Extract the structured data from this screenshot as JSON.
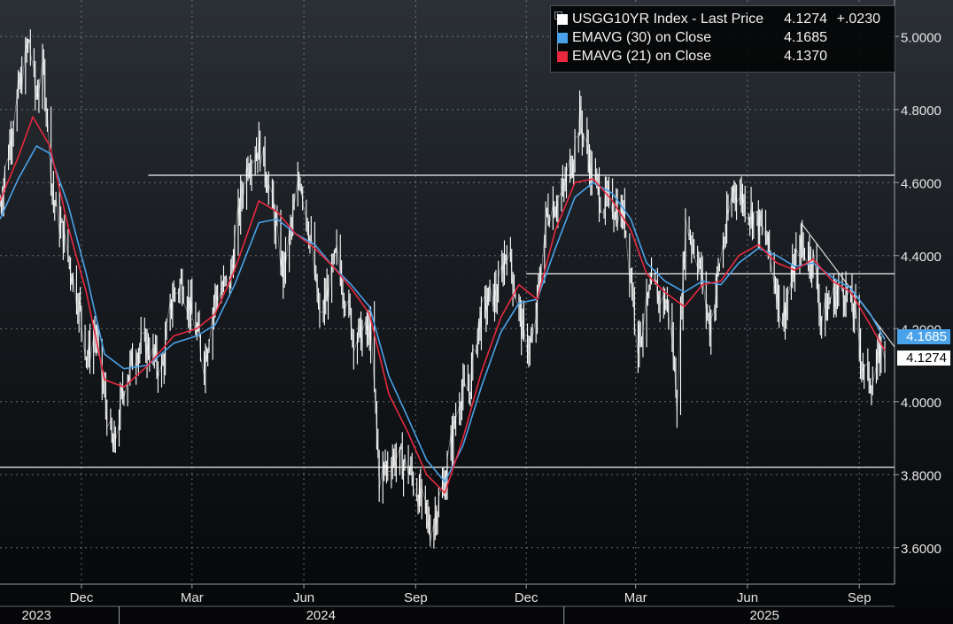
{
  "chart_data": {
    "type": "line",
    "ticker": "USGG10YR Index",
    "y_axis": {
      "range": [
        3.5,
        5.1
      ],
      "ticks": [
        "3.6000",
        "3.8000",
        "4.0000",
        "4.2000",
        "4.4000",
        "4.6000",
        "4.8000",
        "5.0000"
      ],
      "position": "right",
      "grid": true
    },
    "x_axis": {
      "range": [
        "2023-09-25",
        "2025-09-30"
      ],
      "month_ticks": [
        {
          "label": "Dec",
          "date": "2023-12-01"
        },
        {
          "label": "Mar",
          "date": "2024-03-01"
        },
        {
          "label": "Jun",
          "date": "2024-06-01"
        },
        {
          "label": "Sep",
          "date": "2024-09-01"
        },
        {
          "label": "Dec",
          "date": "2024-12-01"
        },
        {
          "label": "Mar",
          "date": "2025-03-01"
        },
        {
          "label": "Jun",
          "date": "2025-06-01"
        },
        {
          "label": "Sep",
          "date": "2025-09-01"
        }
      ],
      "year_labels": [
        {
          "label": "2023",
          "date": "2023-10-25"
        },
        {
          "label": "2024",
          "date": "2024-06-15"
        },
        {
          "label": "2025",
          "date": "2025-06-15"
        }
      ],
      "year_boundaries": [
        "2024-01-01",
        "2025-01-01"
      ]
    },
    "series": [
      {
        "name": "USGG10YR Index - Last Price",
        "value_label": "4.1274",
        "change_label": "+.0230",
        "color": "#ffffff",
        "style": "daily-bars",
        "points": [
          [
            "2023-09-25",
            4.54
          ],
          [
            "2023-10-05",
            4.76
          ],
          [
            "2023-10-19",
            4.99
          ],
          [
            "2023-10-24",
            4.84
          ],
          [
            "2023-10-31",
            4.9
          ],
          [
            "2023-11-08",
            4.55
          ],
          [
            "2023-11-17",
            4.44
          ],
          [
            "2023-11-28",
            4.28
          ],
          [
            "2023-12-06",
            4.12
          ],
          [
            "2023-12-12",
            4.19
          ],
          [
            "2023-12-27",
            3.86
          ],
          [
            "2024-01-05",
            4.05
          ],
          [
            "2024-01-16",
            4.15
          ],
          [
            "2024-01-25",
            4.15
          ],
          [
            "2024-02-05",
            4.08
          ],
          [
            "2024-02-14",
            4.29
          ],
          [
            "2024-02-22",
            4.33
          ],
          [
            "2024-03-04",
            4.2
          ],
          [
            "2024-03-11",
            4.11
          ],
          [
            "2024-03-20",
            4.29
          ],
          [
            "2024-04-01",
            4.33
          ],
          [
            "2024-04-10",
            4.55
          ],
          [
            "2024-04-16",
            4.66
          ],
          [
            "2024-04-25",
            4.7
          ],
          [
            "2024-05-01",
            4.63
          ],
          [
            "2024-05-15",
            4.35
          ],
          [
            "2024-05-29",
            4.62
          ],
          [
            "2024-06-07",
            4.43
          ],
          [
            "2024-06-14",
            4.22
          ],
          [
            "2024-06-28",
            4.4
          ],
          [
            "2024-07-12",
            4.18
          ],
          [
            "2024-07-26",
            4.19
          ],
          [
            "2024-08-02",
            3.79
          ],
          [
            "2024-08-13",
            3.85
          ],
          [
            "2024-08-26",
            3.82
          ],
          [
            "2024-09-06",
            3.72
          ],
          [
            "2024-09-13",
            3.65
          ],
          [
            "2024-09-25",
            3.78
          ],
          [
            "2024-10-07",
            4.02
          ],
          [
            "2024-10-15",
            4.03
          ],
          [
            "2024-10-22",
            4.2
          ],
          [
            "2024-10-31",
            4.28
          ],
          [
            "2024-11-08",
            4.3
          ],
          [
            "2024-11-15",
            4.43
          ],
          [
            "2024-11-29",
            4.17
          ],
          [
            "2024-12-06",
            4.15
          ],
          [
            "2024-12-18",
            4.52
          ],
          [
            "2024-12-31",
            4.57
          ],
          [
            "2025-01-08",
            4.67
          ],
          [
            "2025-01-14",
            4.78
          ],
          [
            "2025-01-24",
            4.62
          ],
          [
            "2025-02-03",
            4.54
          ],
          [
            "2025-02-11",
            4.54
          ],
          [
            "2025-02-20",
            4.5
          ],
          [
            "2025-03-03",
            4.16
          ],
          [
            "2025-03-14",
            4.31
          ],
          [
            "2025-03-28",
            4.26
          ],
          [
            "2025-04-04",
            4.01
          ],
          [
            "2025-04-11",
            4.49
          ],
          [
            "2025-04-21",
            4.4
          ],
          [
            "2025-05-01",
            4.2
          ],
          [
            "2025-05-09",
            4.38
          ],
          [
            "2025-05-21",
            4.59
          ],
          [
            "2025-06-06",
            4.51
          ],
          [
            "2025-06-16",
            4.45
          ],
          [
            "2025-06-30",
            4.23
          ],
          [
            "2025-07-14",
            4.43
          ],
          [
            "2025-07-25",
            4.39
          ],
          [
            "2025-08-01",
            4.22
          ],
          [
            "2025-08-08",
            4.28
          ],
          [
            "2025-08-19",
            4.31
          ],
          [
            "2025-08-29",
            4.23
          ],
          [
            "2025-09-05",
            4.07
          ],
          [
            "2025-09-12",
            4.06
          ],
          [
            "2025-09-19",
            4.14
          ],
          [
            "2025-09-22",
            4.13
          ]
        ]
      },
      {
        "name": "EMAVG (30)  on Close",
        "value_label": "4.1685",
        "color": "#4aa2ea",
        "style": "line",
        "points": [
          [
            "2023-09-25",
            4.5
          ],
          [
            "2023-10-10",
            4.61
          ],
          [
            "2023-10-25",
            4.7
          ],
          [
            "2023-11-05",
            4.68
          ],
          [
            "2023-11-20",
            4.54
          ],
          [
            "2023-12-05",
            4.35
          ],
          [
            "2023-12-20",
            4.13
          ],
          [
            "2024-01-05",
            4.09
          ],
          [
            "2024-01-25",
            4.1
          ],
          [
            "2024-02-15",
            4.16
          ],
          [
            "2024-03-05",
            4.18
          ],
          [
            "2024-03-20",
            4.21
          ],
          [
            "2024-04-05",
            4.32
          ],
          [
            "2024-04-25",
            4.49
          ],
          [
            "2024-05-10",
            4.5
          ],
          [
            "2024-05-25",
            4.46
          ],
          [
            "2024-06-10",
            4.43
          ],
          [
            "2024-06-25",
            4.37
          ],
          [
            "2024-07-10",
            4.32
          ],
          [
            "2024-07-25",
            4.26
          ],
          [
            "2024-08-10",
            4.07
          ],
          [
            "2024-08-25",
            3.96
          ],
          [
            "2024-09-10",
            3.84
          ],
          [
            "2024-09-25",
            3.78
          ],
          [
            "2024-10-10",
            3.88
          ],
          [
            "2024-10-25",
            4.04
          ],
          [
            "2024-11-10",
            4.19
          ],
          [
            "2024-11-25",
            4.27
          ],
          [
            "2024-12-10",
            4.28
          ],
          [
            "2024-12-25",
            4.42
          ],
          [
            "2025-01-10",
            4.56
          ],
          [
            "2025-01-25",
            4.6
          ],
          [
            "2025-02-10",
            4.57
          ],
          [
            "2025-02-25",
            4.5
          ],
          [
            "2025-03-10",
            4.38
          ],
          [
            "2025-03-25",
            4.33
          ],
          [
            "2025-04-10",
            4.3
          ],
          [
            "2025-04-25",
            4.33
          ],
          [
            "2025-05-10",
            4.32
          ],
          [
            "2025-05-25",
            4.38
          ],
          [
            "2025-06-10",
            4.42
          ],
          [
            "2025-06-25",
            4.4
          ],
          [
            "2025-07-10",
            4.37
          ],
          [
            "2025-07-25",
            4.38
          ],
          [
            "2025-08-10",
            4.34
          ],
          [
            "2025-08-25",
            4.31
          ],
          [
            "2025-09-10",
            4.24
          ],
          [
            "2025-09-22",
            4.17
          ]
        ]
      },
      {
        "name": "EMAVG (21)  on Close",
        "value_label": "4.1370",
        "color": "#e8283f",
        "style": "line",
        "points": [
          [
            "2023-09-25",
            4.55
          ],
          [
            "2023-10-10",
            4.67
          ],
          [
            "2023-10-22",
            4.78
          ],
          [
            "2023-11-05",
            4.7
          ],
          [
            "2023-11-20",
            4.48
          ],
          [
            "2023-12-05",
            4.3
          ],
          [
            "2023-12-20",
            4.06
          ],
          [
            "2024-01-05",
            4.04
          ],
          [
            "2024-01-25",
            4.1
          ],
          [
            "2024-02-15",
            4.18
          ],
          [
            "2024-03-05",
            4.2
          ],
          [
            "2024-03-20",
            4.24
          ],
          [
            "2024-04-05",
            4.36
          ],
          [
            "2024-04-25",
            4.55
          ],
          [
            "2024-05-10",
            4.52
          ],
          [
            "2024-05-25",
            4.46
          ],
          [
            "2024-06-10",
            4.42
          ],
          [
            "2024-06-25",
            4.37
          ],
          [
            "2024-07-10",
            4.31
          ],
          [
            "2024-07-25",
            4.24
          ],
          [
            "2024-08-10",
            4.02
          ],
          [
            "2024-08-25",
            3.92
          ],
          [
            "2024-09-10",
            3.8
          ],
          [
            "2024-09-25",
            3.75
          ],
          [
            "2024-10-10",
            3.9
          ],
          [
            "2024-10-25",
            4.08
          ],
          [
            "2024-11-10",
            4.23
          ],
          [
            "2024-11-25",
            4.32
          ],
          [
            "2024-12-10",
            4.28
          ],
          [
            "2024-12-25",
            4.47
          ],
          [
            "2025-01-10",
            4.6
          ],
          [
            "2025-01-25",
            4.61
          ],
          [
            "2025-02-10",
            4.55
          ],
          [
            "2025-02-25",
            4.47
          ],
          [
            "2025-03-10",
            4.35
          ],
          [
            "2025-03-25",
            4.3
          ],
          [
            "2025-04-10",
            4.26
          ],
          [
            "2025-04-25",
            4.32
          ],
          [
            "2025-05-10",
            4.33
          ],
          [
            "2025-05-25",
            4.4
          ],
          [
            "2025-06-10",
            4.43
          ],
          [
            "2025-06-25",
            4.38
          ],
          [
            "2025-07-10",
            4.36
          ],
          [
            "2025-07-25",
            4.39
          ],
          [
            "2025-08-10",
            4.33
          ],
          [
            "2025-08-25",
            4.3
          ],
          [
            "2025-09-10",
            4.21
          ],
          [
            "2025-09-22",
            4.14
          ]
        ]
      }
    ],
    "reference_lines": [
      {
        "type": "horizontal",
        "value": 4.62,
        "from": "2024-01-25",
        "to": "2025-09-30"
      },
      {
        "type": "horizontal",
        "value": 4.35,
        "from": "2024-12-01",
        "to": "2025-09-30"
      },
      {
        "type": "horizontal",
        "value": 3.82,
        "from": "2023-09-25",
        "to": "2025-09-30"
      },
      {
        "type": "trend",
        "from_date": "2025-07-15",
        "from_value": 4.49,
        "to_date": "2025-09-30",
        "to_value": 4.15
      }
    ],
    "value_tags": [
      {
        "label": "4.1685",
        "value": 4.1685,
        "color": "#4aa2ea"
      },
      {
        "label": "4.1274",
        "value": 4.1274,
        "color": "#ffffff"
      }
    ],
    "legend": {
      "placement": "top-right",
      "colors": [
        "#ffffff",
        "#4aa2ea",
        "#e8283f"
      ]
    }
  }
}
